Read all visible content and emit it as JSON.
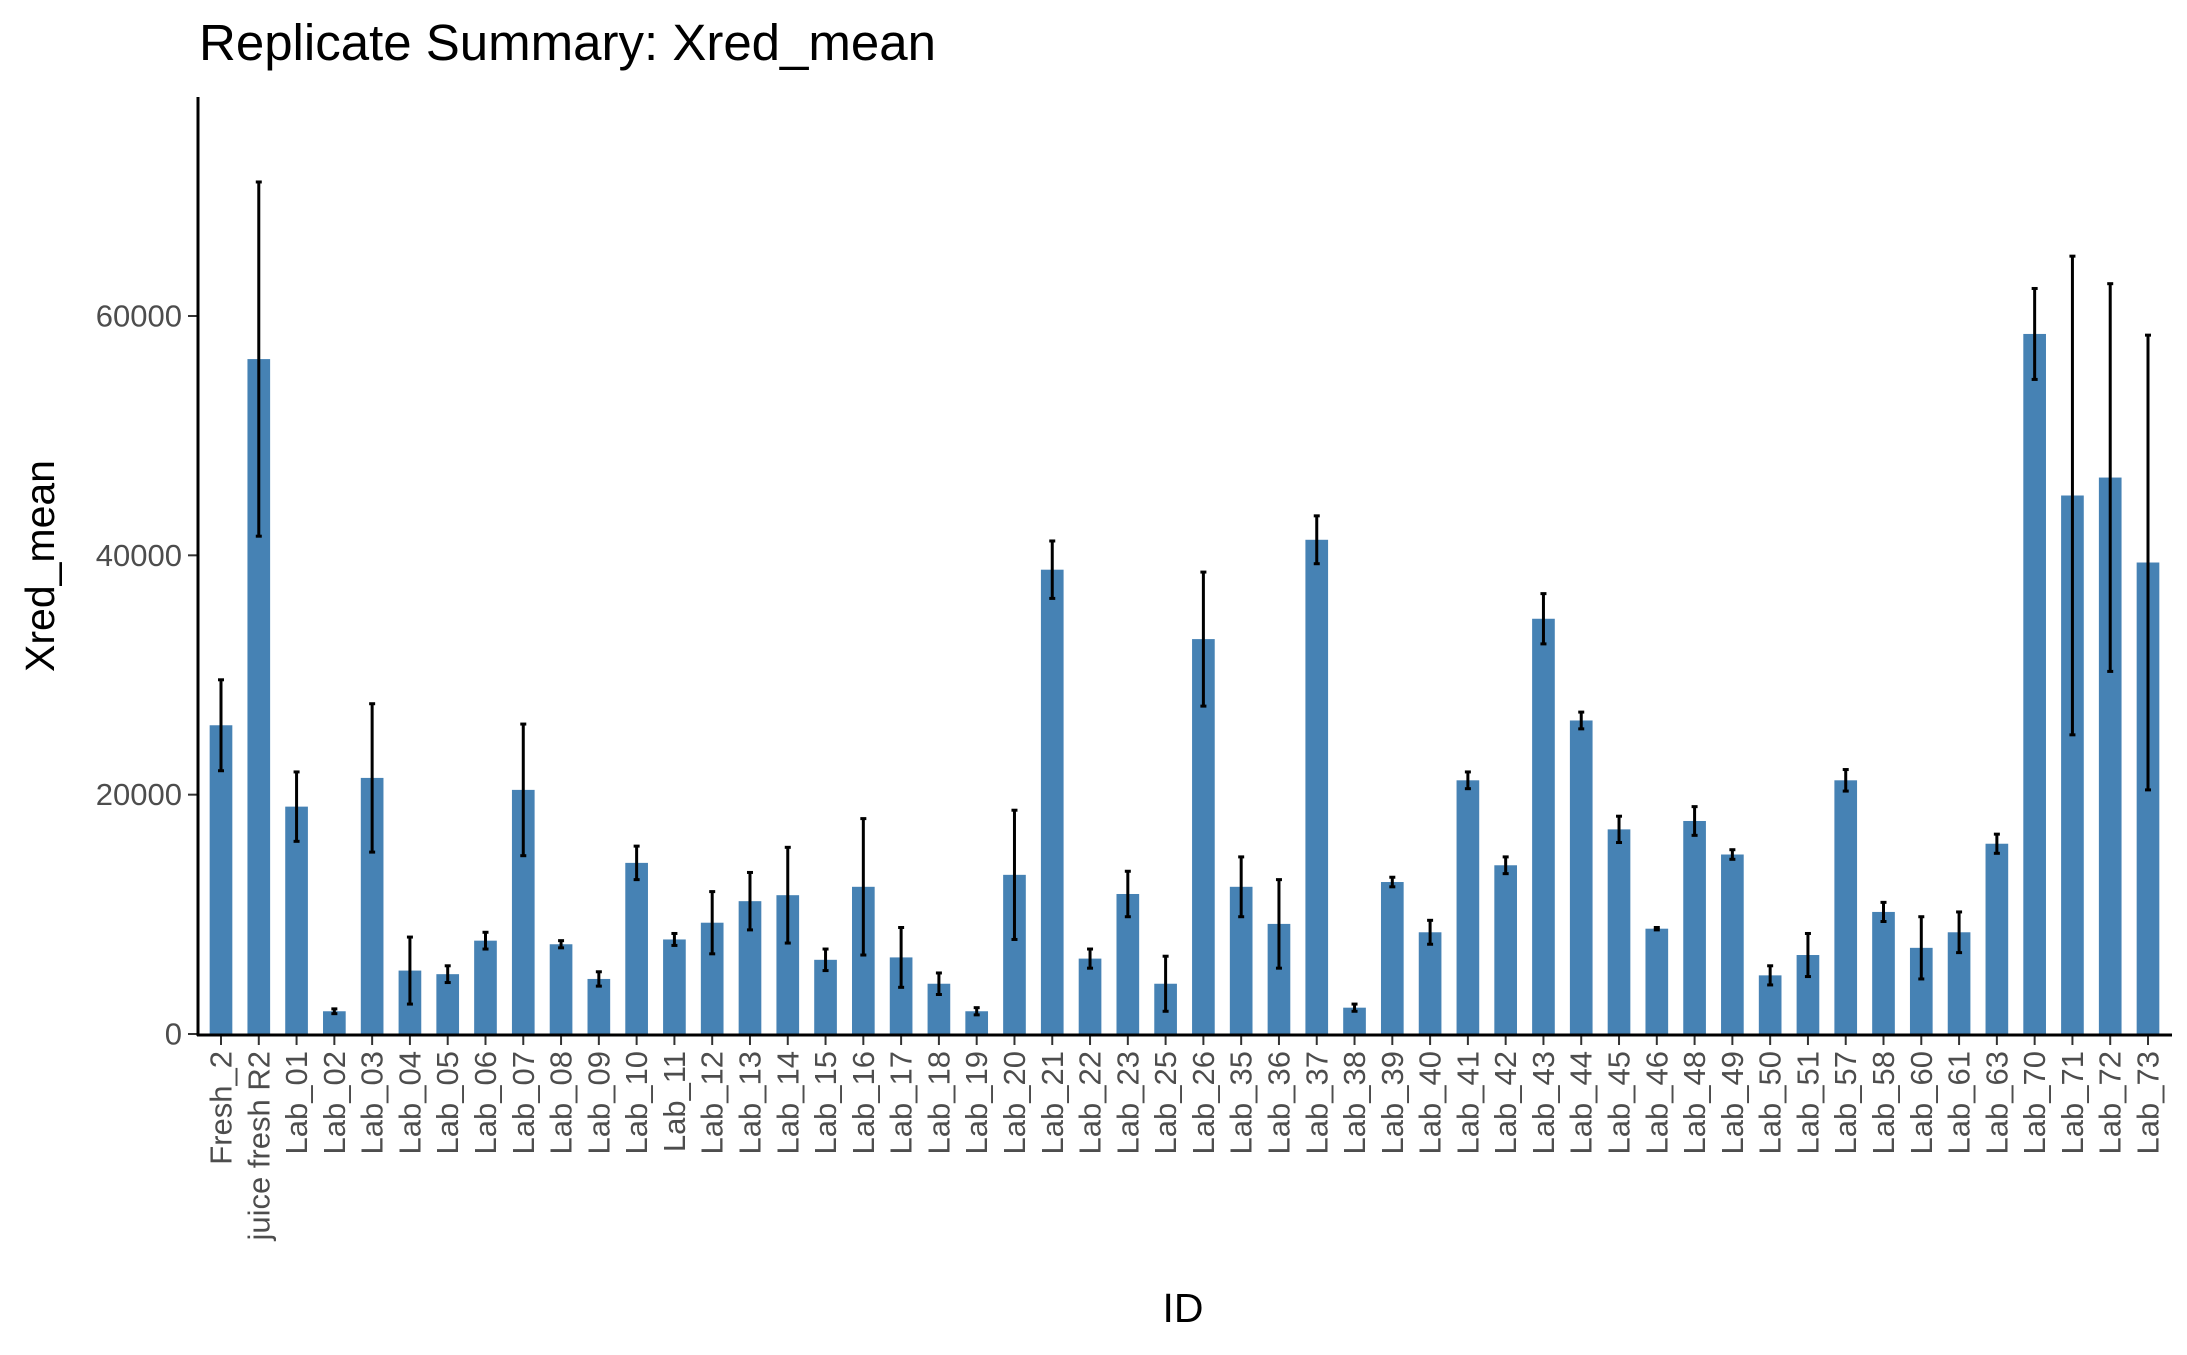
{
  "chart_data": {
    "type": "bar",
    "title": "Replicate Summary: Xred_mean",
    "xlabel": "ID",
    "ylabel": "Xred_mean",
    "ylim": [
      0,
      78000
    ],
    "yticks": [
      0,
      20000,
      40000,
      60000
    ],
    "grid": false,
    "legend": "none",
    "colors": {
      "bar": "#4682b4",
      "error_bar": "#000000",
      "axis": "#000000",
      "tick_label": "#4d4d4d",
      "text": "#000000"
    },
    "categories": [
      "Fresh_2",
      "juice fresh R2",
      "Lab_01",
      "Lab_02",
      "Lab_03",
      "Lab_04",
      "Lab_05",
      "Lab_06",
      "Lab_07",
      "Lab_08",
      "Lab_09",
      "Lab_10",
      "Lab_11",
      "Lab_12",
      "Lab_13",
      "Lab_14",
      "Lab_15",
      "Lab_16",
      "Lab_17",
      "Lab_18",
      "Lab_19",
      "Lab_20",
      "Lab_21",
      "Lab_22",
      "Lab_23",
      "Lab_25",
      "Lab_26",
      "Lab_35",
      "Lab_36",
      "Lab_37",
      "Lab_38",
      "Lab_39",
      "Lab_40",
      "Lab_41",
      "Lab_42",
      "Lab_43",
      "Lab_44",
      "Lab_45",
      "Lab_46",
      "Lab_48",
      "Lab_49",
      "Lab_50",
      "Lab_51",
      "Lab_57",
      "Lab_58",
      "Lab_60",
      "Lab_61",
      "Lab_63",
      "Lab_70",
      "Lab_71",
      "Lab_72",
      "Lab_73"
    ],
    "values": [
      25800,
      56400,
      19000,
      1900,
      21400,
      5300,
      5000,
      7800,
      20400,
      7500,
      4600,
      14300,
      7900,
      9300,
      11100,
      11600,
      6200,
      12300,
      6400,
      4200,
      1900,
      13300,
      38800,
      6300,
      11700,
      4200,
      33000,
      12300,
      9200,
      41300,
      2200,
      12700,
      8500,
      21200,
      14100,
      34700,
      26200,
      17100,
      8800,
      17800,
      15000,
      4900,
      6600,
      21200,
      10200,
      7200,
      8500,
      15900,
      58500,
      45000,
      46500,
      39400
    ],
    "error": [
      3800,
      14800,
      2900,
      200,
      6200,
      2800,
      700,
      700,
      5500,
      300,
      600,
      1400,
      500,
      2600,
      2400,
      4000,
      900,
      5700,
      2500,
      900,
      300,
      5400,
      2400,
      800,
      1900,
      2300,
      5600,
      2500,
      3700,
      2000,
      300,
      400,
      1000,
      700,
      700,
      2100,
      700,
      1100,
      100,
      1200,
      400,
      800,
      1800,
      900,
      800,
      2600,
      1700,
      800,
      3800,
      20000,
      16200,
      19000
    ]
  }
}
